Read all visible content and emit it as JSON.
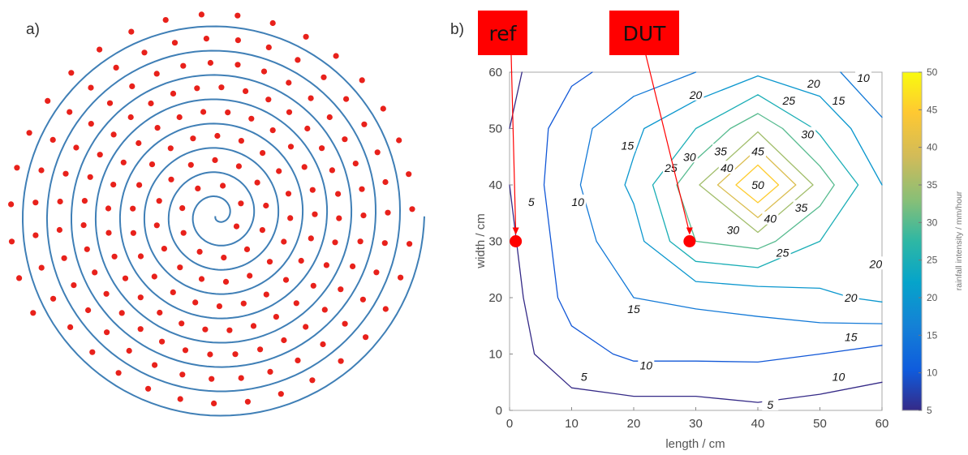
{
  "panel_a": {
    "label": "a)"
  },
  "panel_b": {
    "label": "b)"
  },
  "markers": [
    {
      "label": "ref",
      "x": 1,
      "y": 30
    },
    {
      "label": "DUT",
      "x": 29,
      "y": 30
    }
  ],
  "colors": {
    "spiral": "#3f7fb6",
    "dots": "#e8211b",
    "marker": "#ff0000",
    "frame": "#b0b0b0"
  },
  "chart_data": [
    {
      "type": "scatter",
      "title": "",
      "description_label": "a)",
      "spiral_turns": 8.5,
      "dot_count": 200
    },
    {
      "type": "contour",
      "xlabel": "length / cm",
      "ylabel": "width / cm",
      "xlim": [
        0,
        60
      ],
      "ylim": [
        0,
        60
      ],
      "xticks": [
        "0",
        "10",
        "20",
        "30",
        "40",
        "50",
        "60"
      ],
      "yticks": [
        "0",
        "10",
        "20",
        "30",
        "40",
        "50",
        "60"
      ],
      "x": [
        0,
        10,
        20,
        30,
        40,
        50,
        60
      ],
      "y": [
        0,
        10,
        20,
        30,
        40,
        50,
        60
      ],
      "z": [
        [
          2,
          3,
          3,
          3,
          4,
          3,
          2
        ],
        [
          3,
          8,
          11,
          11,
          11,
          10,
          8
        ],
        [
          3,
          12,
          15,
          16,
          17,
          19,
          21
        ],
        [
          4,
          13,
          18,
          30,
          32,
          25,
          20
        ],
        [
          5,
          14,
          21,
          34,
          51,
          33,
          20
        ],
        [
          5,
          13,
          19,
          25,
          34,
          24,
          16
        ],
        [
          4,
          9,
          12,
          15,
          19,
          17,
          11
        ]
      ],
      "levels": [
        5,
        10,
        15,
        20,
        25,
        30,
        35,
        40,
        45,
        50
      ],
      "contour_labels": [
        {
          "text": "5",
          "x": 3.5,
          "y": 37
        },
        {
          "text": "5",
          "x": 12,
          "y": 6
        },
        {
          "text": "5",
          "x": 42,
          "y": 1
        },
        {
          "text": "10",
          "x": 11,
          "y": 37
        },
        {
          "text": "10",
          "x": 22,
          "y": 8
        },
        {
          "text": "10",
          "x": 53,
          "y": 6
        },
        {
          "text": "10",
          "x": 57,
          "y": 59
        },
        {
          "text": "15",
          "x": 19,
          "y": 47
        },
        {
          "text": "15",
          "x": 20,
          "y": 18
        },
        {
          "text": "15",
          "x": 53,
          "y": 55
        },
        {
          "text": "15",
          "x": 55,
          "y": 13
        },
        {
          "text": "20",
          "x": 30,
          "y": 56
        },
        {
          "text": "20",
          "x": 49,
          "y": 58
        },
        {
          "text": "20",
          "x": 59,
          "y": 26
        },
        {
          "text": "20",
          "x": 55,
          "y": 20
        },
        {
          "text": "25",
          "x": 26,
          "y": 43
        },
        {
          "text": "25",
          "x": 45,
          "y": 55
        },
        {
          "text": "25",
          "x": 44,
          "y": 28
        },
        {
          "text": "30",
          "x": 29,
          "y": 45
        },
        {
          "text": "30",
          "x": 48,
          "y": 49
        },
        {
          "text": "30",
          "x": 36,
          "y": 32
        },
        {
          "text": "35",
          "x": 34,
          "y": 46
        },
        {
          "text": "35",
          "x": 47,
          "y": 36
        },
        {
          "text": "40",
          "x": 35,
          "y": 43
        },
        {
          "text": "40",
          "x": 42,
          "y": 34
        },
        {
          "text": "45",
          "x": 40,
          "y": 46
        },
        {
          "text": "50",
          "x": 40,
          "y": 40
        }
      ],
      "colorbar": {
        "label": "rainfall intensity / mm/hour",
        "min": 5,
        "max": 50,
        "ticks": [
          "5",
          "10",
          "15",
          "20",
          "25",
          "30",
          "35",
          "40",
          "45",
          "50"
        ],
        "colormap": "parula"
      }
    }
  ]
}
